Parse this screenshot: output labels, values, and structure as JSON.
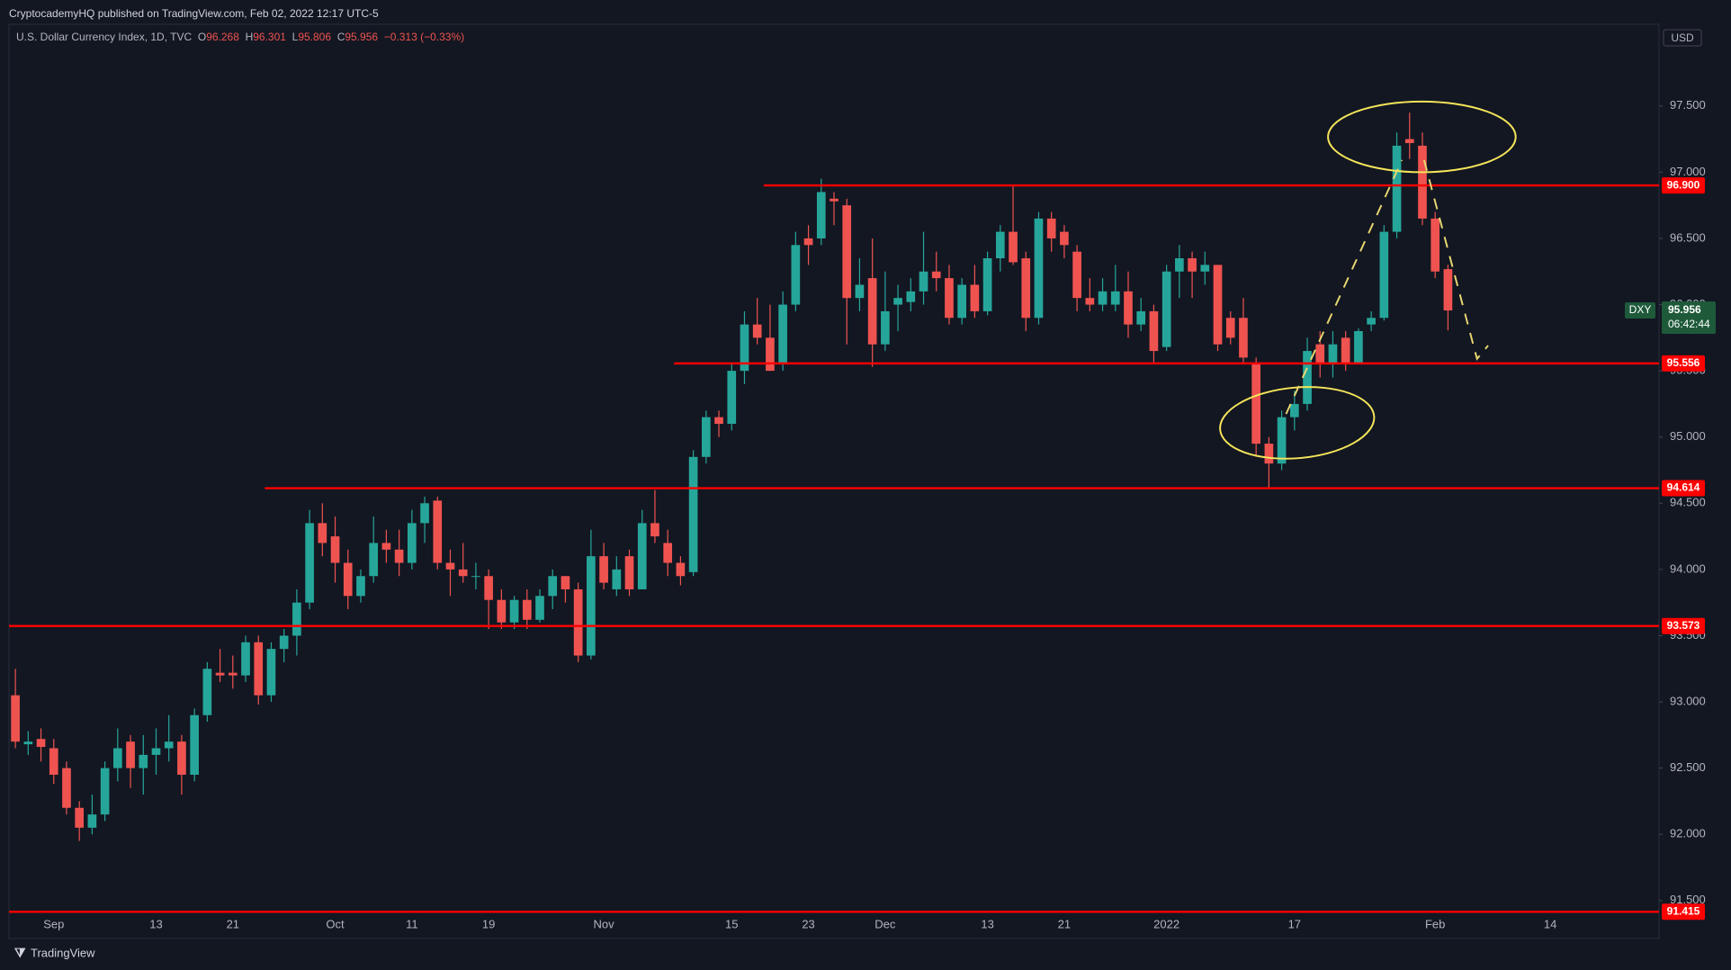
{
  "header": {
    "publisher": "CryptocademyHQ published on TradingView.com, Feb 02, 2022 12:17 UTC-5",
    "brand": "TradingView"
  },
  "chart_data": {
    "type": "candlestick",
    "title": "U.S. Dollar Currency Index, 1D, TVC",
    "ohlc_letters": [
      "O",
      "H",
      "L",
      "C"
    ],
    "change": "−0.313 (−0.33%)",
    "currency": "USD",
    "symbol": "DXY",
    "countdown": "06:42:44",
    "up_color": "#26a69a",
    "down_color": "#ef5350",
    "level_color": "#ff0000",
    "categories": [
      null,
      null,
      null,
      "Sep",
      null,
      null,
      null,
      null,
      null,
      null,
      null,
      "13",
      null,
      null,
      null,
      null,
      null,
      "21",
      null,
      null,
      null,
      null,
      null,
      null,
      null,
      "Oct",
      null,
      null,
      null,
      null,
      null,
      "11",
      null,
      null,
      null,
      null,
      null,
      "19",
      null,
      null,
      null,
      null,
      null,
      null,
      null,
      null,
      "Nov",
      null,
      null,
      null,
      null,
      null,
      null,
      null,
      null,
      null,
      "15",
      null,
      null,
      null,
      null,
      null,
      "23",
      null,
      null,
      null,
      null,
      null,
      "Dec",
      null,
      null,
      null,
      null,
      null,
      null,
      null,
      "13",
      null,
      null,
      null,
      null,
      null,
      "21",
      null,
      null,
      null,
      null,
      null,
      null,
      null,
      "2022",
      null,
      null,
      null,
      null,
      null,
      null,
      null,
      null,
      null,
      "17",
      null,
      null,
      null,
      null,
      null,
      null,
      null,
      null,
      null,
      null,
      "Feb",
      null,
      null,
      null,
      null,
      null,
      null,
      null,
      null,
      "14",
      null,
      null,
      null,
      null,
      null,
      null,
      null,
      null
    ],
    "opens": [
      93.05,
      92.68,
      92.72,
      92.65,
      92.5,
      92.2,
      92.05,
      92.15,
      92.5,
      92.7,
      92.5,
      92.6,
      92.65,
      92.7,
      92.45,
      92.9,
      93.22,
      93.22,
      93.2,
      93.45,
      93.05,
      93.4,
      93.5,
      93.75,
      94.35,
      94.25,
      94.05,
      93.8,
      93.95,
      94.2,
      94.15,
      94.05,
      94.35,
      94.52,
      94.05,
      94.0,
      93.95,
      93.95,
      93.77,
      93.6,
      93.77,
      93.62,
      93.8,
      93.95,
      93.85,
      93.35,
      94.1,
      93.85,
      94.1,
      93.85,
      94.35,
      94.2,
      94.05,
      93.98,
      94.85,
      95.15,
      95.1,
      95.5,
      95.85,
      95.75,
      95.55,
      96.0,
      96.5,
      96.5,
      96.8,
      96.75,
      96.05,
      96.2,
      95.7,
      96.0,
      96.02,
      96.1,
      96.25,
      96.2,
      95.9,
      96.15,
      95.95,
      96.35,
      96.55,
      96.35,
      95.9,
      96.65,
      96.55,
      96.4,
      96.05,
      96.0,
      96.0,
      96.1,
      95.85,
      95.95,
      95.68,
      96.25,
      96.35,
      96.25,
      96.3,
      95.9,
      95.9,
      95.55,
      94.95,
      94.8,
      95.15,
      95.25,
      95.7,
      95.55,
      95.75,
      95.55,
      95.85,
      95.9,
      96.55,
      97.25,
      97.2,
      96.65,
      96.268,
      null,
      null,
      null,
      null,
      null,
      null,
      null,
      null,
      null,
      null,
      null,
      null,
      null,
      null,
      null,
      null
    ],
    "highs": [
      93.25,
      92.78,
      92.8,
      92.72,
      92.55,
      92.25,
      92.3,
      92.55,
      92.8,
      92.75,
      92.75,
      92.8,
      92.9,
      92.75,
      92.95,
      93.3,
      93.4,
      93.35,
      93.5,
      93.5,
      93.45,
      93.55,
      93.85,
      94.45,
      94.5,
      94.4,
      94.15,
      94.0,
      94.4,
      94.3,
      94.3,
      94.45,
      94.55,
      94.55,
      94.15,
      94.2,
      94.05,
      94.0,
      93.85,
      93.8,
      93.85,
      93.85,
      94.0,
      93.95,
      93.9,
      94.3,
      94.2,
      94.1,
      94.15,
      94.45,
      94.6,
      94.3,
      94.1,
      94.9,
      95.2,
      95.2,
      95.55,
      95.95,
      96.05,
      96.0,
      96.1,
      96.55,
      96.6,
      96.95,
      96.85,
      96.8,
      96.35,
      96.5,
      96.25,
      96.15,
      96.2,
      96.55,
      96.4,
      96.3,
      96.2,
      96.3,
      96.4,
      96.6,
      96.9,
      96.4,
      96.7,
      96.7,
      96.6,
      96.45,
      96.2,
      96.2,
      96.3,
      96.25,
      96.05,
      96.0,
      96.3,
      96.45,
      96.4,
      96.4,
      96.3,
      95.95,
      96.05,
      95.6,
      95.0,
      95.2,
      95.35,
      95.75,
      95.8,
      95.8,
      95.8,
      95.82,
      95.95,
      96.6,
      97.3,
      97.45,
      97.3,
      96.7,
      96.301,
      null,
      null,
      null,
      null,
      null,
      null,
      null,
      null,
      null,
      null,
      null,
      null,
      null,
      null,
      null,
      null
    ],
    "lows": [
      92.65,
      92.6,
      92.55,
      92.38,
      92.15,
      91.95,
      92.0,
      92.1,
      92.4,
      92.35,
      92.3,
      92.45,
      92.55,
      92.3,
      92.4,
      92.85,
      93.15,
      93.1,
      93.15,
      92.98,
      93.0,
      93.3,
      93.35,
      93.7,
      94.1,
      93.9,
      93.7,
      93.75,
      93.9,
      94.05,
      93.95,
      94.0,
      94.2,
      94.0,
      93.8,
      93.9,
      93.85,
      93.55,
      93.55,
      93.55,
      93.55,
      93.6,
      93.7,
      93.75,
      93.3,
      93.32,
      93.85,
      93.8,
      93.8,
      93.85,
      94.2,
      93.95,
      93.88,
      93.95,
      94.8,
      95.0,
      95.05,
      95.4,
      95.7,
      95.5,
      95.5,
      95.95,
      96.3,
      96.45,
      96.6,
      95.7,
      95.95,
      95.53,
      95.65,
      95.8,
      95.95,
      96.0,
      96.1,
      95.85,
      95.85,
      95.9,
      95.92,
      96.25,
      96.3,
      95.8,
      95.85,
      96.4,
      96.35,
      95.95,
      95.95,
      95.95,
      95.95,
      95.75,
      95.8,
      95.55,
      95.65,
      96.05,
      96.05,
      96.15,
      95.65,
      95.7,
      95.55,
      94.85,
      94.62,
      94.75,
      95.05,
      95.2,
      95.45,
      95.45,
      95.5,
      95.55,
      95.8,
      95.88,
      96.5,
      97.1,
      96.6,
      96.2,
      95.806,
      null,
      null,
      null,
      null,
      null,
      null,
      null,
      null,
      null,
      null,
      null,
      null,
      null,
      null,
      null,
      null
    ],
    "closes": [
      92.7,
      92.7,
      92.66,
      92.45,
      92.2,
      92.05,
      92.15,
      92.5,
      92.65,
      92.5,
      92.6,
      92.65,
      92.7,
      92.45,
      92.9,
      93.25,
      93.2,
      93.2,
      93.45,
      93.05,
      93.4,
      93.5,
      93.75,
      94.35,
      94.2,
      94.05,
      93.8,
      93.95,
      94.2,
      94.15,
      94.05,
      94.35,
      94.5,
      94.05,
      94.0,
      93.95,
      93.95,
      93.77,
      93.6,
      93.77,
      93.62,
      93.8,
      93.95,
      93.85,
      93.35,
      94.1,
      93.9,
      94.0,
      93.85,
      94.35,
      94.25,
      94.05,
      93.95,
      94.85,
      95.15,
      95.1,
      95.5,
      95.85,
      95.75,
      95.5,
      96.0,
      96.45,
      96.45,
      96.85,
      96.78,
      96.05,
      96.15,
      95.7,
      95.95,
      96.05,
      96.1,
      96.25,
      96.2,
      95.9,
      96.15,
      95.95,
      96.35,
      96.55,
      96.32,
      95.9,
      96.65,
      96.5,
      96.45,
      96.05,
      96.0,
      96.1,
      96.1,
      95.85,
      95.95,
      95.65,
      96.25,
      96.35,
      96.25,
      96.3,
      95.7,
      95.75,
      95.6,
      94.95,
      94.8,
      95.15,
      95.25,
      95.65,
      95.55,
      95.7,
      95.55,
      95.8,
      95.9,
      96.55,
      97.2,
      97.22,
      96.65,
      96.25,
      95.956,
      null,
      null,
      null,
      null,
      null,
      null,
      null,
      null,
      null,
      null,
      null,
      null,
      null,
      null,
      null,
      null
    ],
    "ylim": [
      91.417,
      98.117
    ],
    "yticks": [
      {
        "value": 91.5,
        "label": "91.500"
      },
      {
        "value": 92,
        "label": "92.000"
      },
      {
        "value": 92.5,
        "label": "92.500"
      },
      {
        "value": 93,
        "label": "93.000"
      },
      {
        "value": 93.5,
        "label": "93.500"
      },
      {
        "value": 94,
        "label": "94.000"
      },
      {
        "value": 94.5,
        "label": "94.500"
      },
      {
        "value": 95,
        "label": "95.000"
      },
      {
        "value": 95.5,
        "label": "95.500"
      },
      {
        "value": 96,
        "label": "96.000"
      },
      {
        "value": 96.5,
        "label": "96.500"
      },
      {
        "value": 97,
        "label": "97.000"
      },
      {
        "value": 97.5,
        "label": "97.500"
      }
    ],
    "levels": [
      {
        "value": 96.9,
        "label": "96.900",
        "from": 59
      },
      {
        "value": 95.556,
        "label": "95.556",
        "from": 52
      },
      {
        "value": 94.614,
        "label": "94.614",
        "from": 20
      },
      {
        "value": 93.573,
        "label": "93.573",
        "from": 0
      },
      {
        "value": 91.415,
        "label": "91.415",
        "from": 0
      }
    ],
    "grid": false
  }
}
